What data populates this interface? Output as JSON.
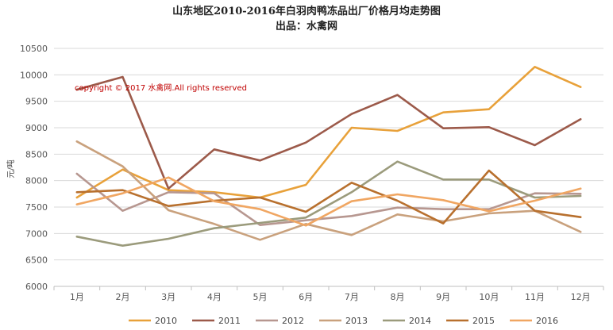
{
  "chart_data": {
    "type": "line",
    "title": "山东地区2010-2016年白羽肉鸭冻品出厂价格月均走势图",
    "subtitle": "出品：水禽网",
    "ylabel": "元/吨",
    "xlabel": "",
    "copyright": "copyright © 2017 水禽网.All rights reserved",
    "categories": [
      "1月",
      "2月",
      "3月",
      "4月",
      "5月",
      "6月",
      "7月",
      "8月",
      "9月",
      "10月",
      "11月",
      "12月"
    ],
    "ylim": [
      6000,
      10500
    ],
    "yticks": [
      6000,
      6500,
      7000,
      7500,
      8000,
      8500,
      9000,
      9500,
      10000,
      10500
    ],
    "grid": true,
    "legend_position": "bottom",
    "series": [
      {
        "name": "2010",
        "color": "#e8a13a",
        "values": [
          7680,
          8210,
          7820,
          7780,
          7680,
          7920,
          9000,
          8940,
          9290,
          9350,
          10150,
          9770
        ]
      },
      {
        "name": "2011",
        "color": "#9c5a4a",
        "values": [
          9720,
          9960,
          7850,
          8590,
          8380,
          8720,
          9260,
          9620,
          8990,
          9010,
          8670,
          9160
        ]
      },
      {
        "name": "2012",
        "color": "#b79790",
        "values": [
          8130,
          7430,
          7780,
          7760,
          7160,
          7250,
          7330,
          7490,
          7460,
          7460,
          7760,
          7750
        ]
      },
      {
        "name": "2013",
        "color": "#c9a17d",
        "values": [
          8740,
          8270,
          7440,
          7180,
          6880,
          7180,
          6970,
          7360,
          7230,
          7380,
          7430,
          7030
        ]
      },
      {
        "name": "2014",
        "color": "#9b9b7c",
        "values": [
          6940,
          6770,
          6900,
          7100,
          7200,
          7300,
          7780,
          8360,
          8020,
          8020,
          7680,
          7710
        ]
      },
      {
        "name": "2015",
        "color": "#b8702e",
        "values": [
          7780,
          7820,
          7520,
          7620,
          7680,
          7410,
          7960,
          7620,
          7190,
          8190,
          7430,
          7310
        ]
      },
      {
        "name": "2016",
        "color": "#f0a662",
        "values": [
          7550,
          7760,
          8060,
          7610,
          7460,
          7150,
          7610,
          7740,
          7630,
          7420,
          7620,
          7850
        ]
      }
    ]
  }
}
